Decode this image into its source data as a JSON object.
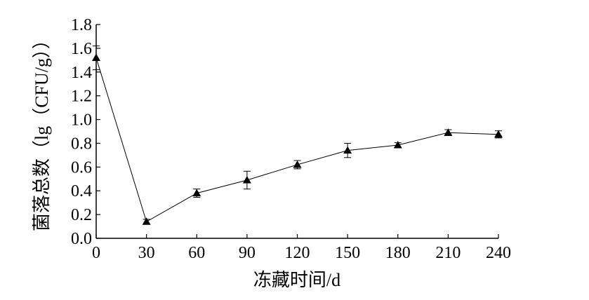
{
  "chart_data": {
    "type": "line",
    "title": "",
    "xlabel": "冻藏时间/d",
    "ylabel": "菌落总数（lg（CFU/g））",
    "x": [
      0,
      30,
      60,
      90,
      120,
      150,
      180,
      210,
      240
    ],
    "xticks": [
      "0",
      "30",
      "60",
      "90",
      "120",
      "150",
      "180",
      "210",
      "240"
    ],
    "yticks": [
      "0.0",
      "0.2",
      "0.4",
      "0.6",
      "0.8",
      "1.0",
      "1.2",
      "1.4",
      "1.6",
      "1.8"
    ],
    "xlim": [
      0,
      240
    ],
    "ylim": [
      0,
      1.8
    ],
    "grid": false,
    "series": [
      {
        "marker": "triangle",
        "color": "#000000",
        "values": [
          1.52,
          0.14,
          0.38,
          0.49,
          0.62,
          0.74,
          0.785,
          0.89,
          0.875
        ],
        "error": [
          0.1,
          0.02,
          0.035,
          0.075,
          0.035,
          0.06,
          0.02,
          0.025,
          0.03
        ]
      }
    ]
  }
}
